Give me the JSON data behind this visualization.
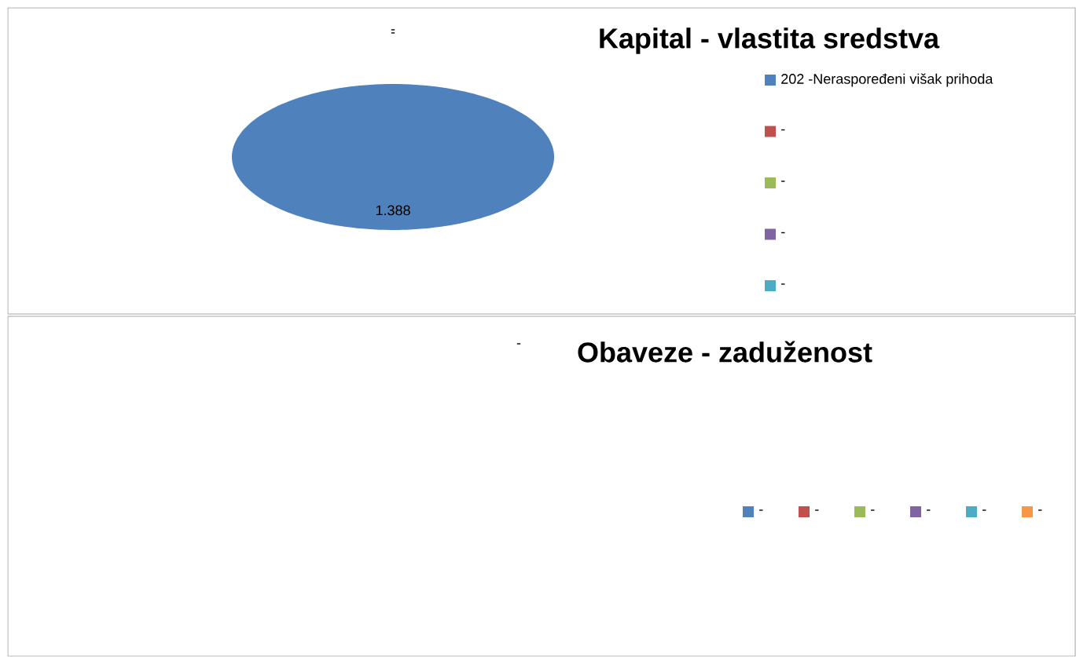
{
  "chart_data": [
    {
      "type": "pie",
      "title": "Kapital - vlastita sredstva",
      "categories": [
        "202  -Neraspoređeni višak prihoda",
        "-",
        "-",
        "-",
        "-"
      ],
      "values": [
        1.388,
        0,
        0,
        0,
        0
      ],
      "colors": [
        "#4f81bd",
        "#c0504d",
        "#9bbb59",
        "#8064a2",
        "#4bacc6"
      ],
      "value_labels": [
        "1.388",
        "-",
        "-",
        null,
        null
      ],
      "legend": "right"
    },
    {
      "type": "other",
      "title": "Obaveze - zaduženost",
      "categories": [
        "-",
        "-",
        "-",
        "-",
        "-",
        "-"
      ],
      "colors": [
        "#4f81bd",
        "#c0504d",
        "#9bbb59",
        "#8064a2",
        "#4bacc6",
        "#f79646"
      ],
      "annotations": [
        "-"
      ]
    }
  ]
}
